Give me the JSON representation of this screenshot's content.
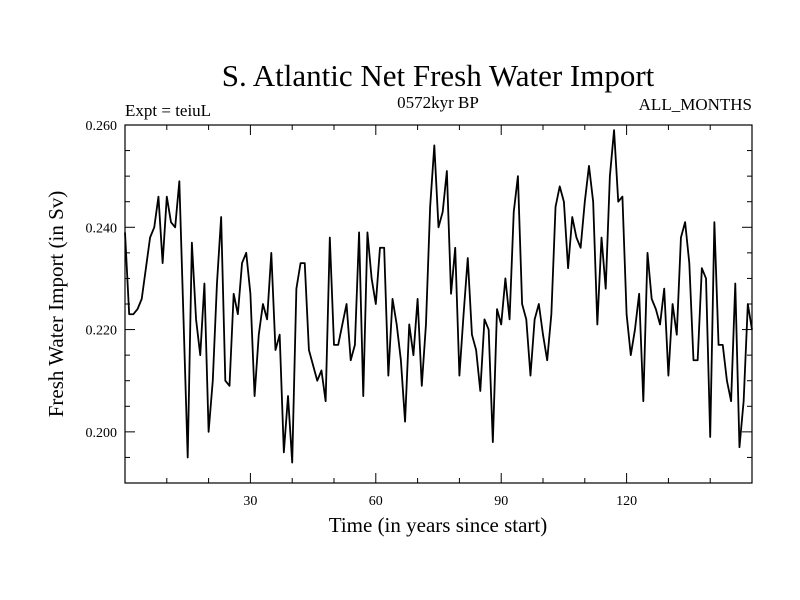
{
  "chart_data": {
    "type": "line",
    "title": "S. Atlantic Net Fresh Water Import",
    "subtitle_left": "Expt = teiuL",
    "subtitle_center": "0572kyr BP",
    "subtitle_right": "ALL_MONTHS",
    "xlabel": "Time (in years since start)",
    "ylabel": "Fresh Water Import (in Sv)",
    "xlim": [
      0,
      150
    ],
    "ylim": [
      0.19,
      0.26
    ],
    "x_ticks": [
      30,
      60,
      90,
      120
    ],
    "x_tick_labels": [
      "30",
      "60",
      "90",
      "120"
    ],
    "y_ticks": [
      0.2,
      0.22,
      0.24,
      0.26
    ],
    "y_tick_labels": [
      "0.200",
      "0.220",
      "0.240",
      "0.260"
    ],
    "line_color": "#000000",
    "series": [
      {
        "name": "S. Atlantic Net Fresh Water Import",
        "x": [
          0,
          1,
          2,
          3,
          4,
          5,
          6,
          7,
          8,
          9,
          10,
          11,
          12,
          13,
          14,
          15,
          16,
          17,
          18,
          19,
          20,
          21,
          22,
          23,
          24,
          25,
          26,
          27,
          28,
          29,
          30,
          31,
          32,
          33,
          34,
          35,
          36,
          37,
          38,
          39,
          40,
          41,
          42,
          43,
          44,
          45,
          46,
          47,
          48,
          49,
          50,
          51,
          52,
          53,
          54,
          55,
          56,
          57,
          58,
          59,
          60,
          61,
          62,
          63,
          64,
          65,
          66,
          67,
          68,
          69,
          70,
          71,
          72,
          73,
          74,
          75,
          76,
          77,
          78,
          79,
          80,
          81,
          82,
          83,
          84,
          85,
          86,
          87,
          88,
          89,
          90,
          91,
          92,
          93,
          94,
          95,
          96,
          97,
          98,
          99,
          100,
          101,
          102,
          103,
          104,
          105,
          106,
          107,
          108,
          109,
          110,
          111,
          112,
          113,
          114,
          115,
          116,
          117,
          118,
          119,
          120,
          121,
          122,
          123,
          124,
          125,
          126,
          127,
          128,
          129,
          130,
          131,
          132,
          133,
          134,
          135,
          136,
          137,
          138,
          139,
          140,
          141,
          142,
          143,
          144,
          145,
          146,
          147,
          148,
          149,
          150
        ],
        "values": [
          0.239,
          0.223,
          0.223,
          0.224,
          0.226,
          0.232,
          0.238,
          0.24,
          0.246,
          0.233,
          0.246,
          0.241,
          0.24,
          0.249,
          0.222,
          0.195,
          0.237,
          0.222,
          0.215,
          0.229,
          0.2,
          0.21,
          0.229,
          0.242,
          0.21,
          0.209,
          0.227,
          0.223,
          0.233,
          0.235,
          0.227,
          0.207,
          0.219,
          0.225,
          0.222,
          0.235,
          0.216,
          0.219,
          0.196,
          0.207,
          0.194,
          0.228,
          0.233,
          0.233,
          0.216,
          0.213,
          0.21,
          0.212,
          0.206,
          0.238,
          0.217,
          0.217,
          0.221,
          0.225,
          0.214,
          0.217,
          0.239,
          0.207,
          0.239,
          0.23,
          0.225,
          0.236,
          0.236,
          0.211,
          0.226,
          0.221,
          0.214,
          0.202,
          0.221,
          0.215,
          0.226,
          0.209,
          0.221,
          0.244,
          0.256,
          0.24,
          0.243,
          0.251,
          0.227,
          0.236,
          0.211,
          0.223,
          0.234,
          0.219,
          0.216,
          0.208,
          0.222,
          0.22,
          0.198,
          0.224,
          0.221,
          0.23,
          0.222,
          0.243,
          0.25,
          0.225,
          0.222,
          0.211,
          0.222,
          0.225,
          0.219,
          0.214,
          0.223,
          0.244,
          0.248,
          0.245,
          0.232,
          0.242,
          0.238,
          0.236,
          0.245,
          0.252,
          0.245,
          0.221,
          0.238,
          0.228,
          0.25,
          0.259,
          0.245,
          0.246,
          0.223,
          0.215,
          0.22,
          0.227,
          0.206,
          0.235,
          0.226,
          0.224,
          0.221,
          0.228,
          0.211,
          0.225,
          0.219,
          0.238,
          0.241,
          0.233,
          0.214,
          0.214,
          0.232,
          0.23,
          0.199,
          0.241,
          0.217,
          0.217,
          0.21,
          0.206,
          0.229,
          0.197,
          0.206,
          0.225,
          0.22
        ]
      }
    ]
  }
}
